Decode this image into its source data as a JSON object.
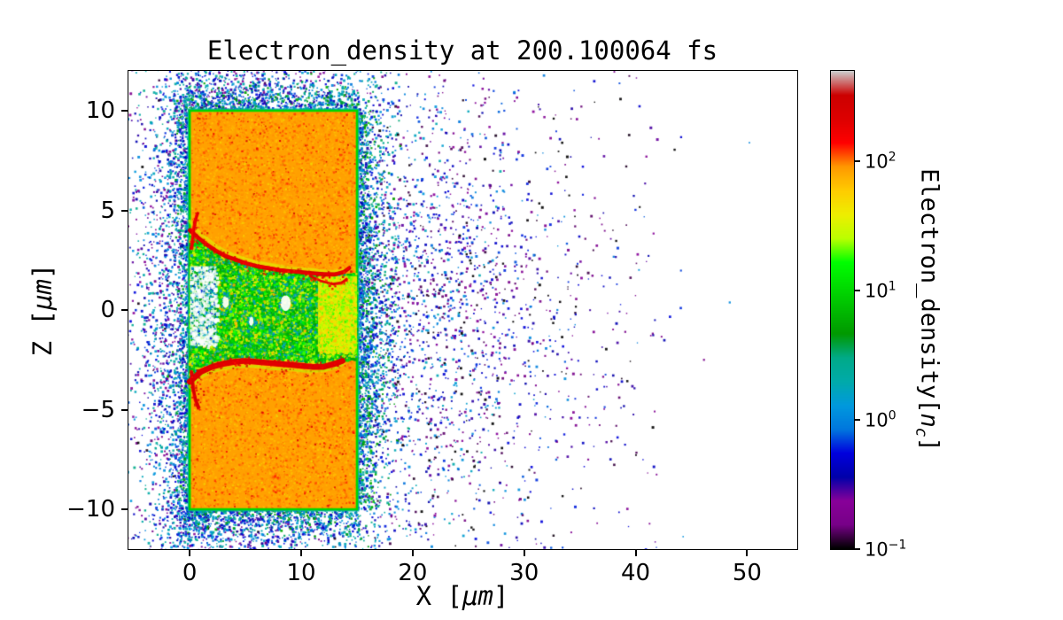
{
  "chart_data": {
    "type": "heatmap",
    "title": "Electron_density at 200.100064 fs",
    "xlabel": "X [μm]",
    "ylabel": "Z [μm]",
    "xlabel_parts": {
      "pre": "X [",
      "unit": "μm",
      "post": "]"
    },
    "ylabel_parts": {
      "pre": "Z [",
      "unit": "μm",
      "post": "]"
    },
    "x_range": [
      -5.5,
      54.5
    ],
    "z_range": [
      -12,
      12
    ],
    "x_ticks": [
      {
        "v": 0,
        "label": "0"
      },
      {
        "v": 10,
        "label": "10"
      },
      {
        "v": 20,
        "label": "20"
      },
      {
        "v": 30,
        "label": "30"
      },
      {
        "v": 40,
        "label": "40"
      },
      {
        "v": 50,
        "label": "50"
      }
    ],
    "z_ticks": [
      {
        "v": 10,
        "label": "10"
      },
      {
        "v": 5,
        "label": "5"
      },
      {
        "v": 0,
        "label": "0"
      },
      {
        "v": -5,
        "label": "−5"
      },
      {
        "v": -10,
        "label": "−10"
      }
    ],
    "colorbar": {
      "label": "Electron_density[nc]",
      "label_parts": {
        "pre": "Electron_density[",
        "var": "n",
        "sub": "c",
        "post": "]"
      },
      "scale": "log",
      "vmin": 0.1,
      "vmax": 500,
      "colormap": "nipy_spectral",
      "ticks": [
        {
          "v": 100,
          "base": "10",
          "exp": "2"
        },
        {
          "v": 10,
          "base": "10",
          "exp": "1"
        },
        {
          "v": 1,
          "base": "10",
          "exp": "0"
        },
        {
          "v": 0.1,
          "base": "10",
          "exp": "−1"
        }
      ],
      "stops": [
        [
          0.0,
          "#000000"
        ],
        [
          0.05,
          "#770088"
        ],
        [
          0.1,
          "#880099"
        ],
        [
          0.15,
          "#0000aa"
        ],
        [
          0.2,
          "#0000dd"
        ],
        [
          0.25,
          "#0077dd"
        ],
        [
          0.3,
          "#0099dd"
        ],
        [
          0.35,
          "#00aaaa"
        ],
        [
          0.4,
          "#00aa88"
        ],
        [
          0.45,
          "#009900"
        ],
        [
          0.5,
          "#00bb00"
        ],
        [
          0.55,
          "#00dd00"
        ],
        [
          0.6,
          "#00ff00"
        ],
        [
          0.65,
          "#bbff00"
        ],
        [
          0.7,
          "#eeee00"
        ],
        [
          0.75,
          "#ffcc00"
        ],
        [
          0.8,
          "#ff9900"
        ],
        [
          0.85,
          "#ff0000"
        ],
        [
          0.9,
          "#dd0000"
        ],
        [
          0.95,
          "#cc0000"
        ],
        [
          1.0,
          "#cccccc"
        ]
      ]
    },
    "render": {
      "seed": 20,
      "target": {
        "x": [
          0,
          15
        ],
        "z": [
          -10,
          10
        ],
        "density": 85,
        "speckle": {
          "n": 15000,
          "sigma_dex": 0.1
        },
        "red_specks": {
          "n": 320,
          "v": [
            140,
            300
          ]
        },
        "yellow_specks": {
          "n": 280,
          "v": [
            36,
            55
          ]
        }
      },
      "border": {
        "inner_v": 10,
        "outer_v": 2
      },
      "channel": {
        "base_v": 8,
        "upper": [
          [
            0,
            4.1
          ],
          [
            1,
            3.4
          ],
          [
            2,
            3.0
          ],
          [
            3,
            2.7
          ],
          [
            4,
            2.45
          ],
          [
            5,
            2.25
          ],
          [
            6,
            2.1
          ],
          [
            7,
            2.0
          ],
          [
            8,
            1.95
          ],
          [
            9,
            1.9
          ],
          [
            10,
            1.85
          ],
          [
            11,
            1.8
          ],
          [
            12,
            1.78
          ],
          [
            13,
            1.76
          ],
          [
            14,
            1.8
          ],
          [
            15,
            1.85
          ]
        ],
        "lower": [
          [
            0,
            -3.4
          ],
          [
            1,
            -2.9
          ],
          [
            2,
            -2.65
          ],
          [
            3,
            -2.5
          ],
          [
            4,
            -2.42
          ],
          [
            5,
            -2.4
          ],
          [
            6,
            -2.42
          ],
          [
            7,
            -2.45
          ],
          [
            8,
            -2.5
          ],
          [
            9,
            -2.55
          ],
          [
            10,
            -2.6
          ],
          [
            11,
            -2.65
          ],
          [
            12,
            -2.7
          ],
          [
            13,
            -2.65
          ],
          [
            14,
            -2.55
          ],
          [
            15,
            -2.5
          ]
        ],
        "turbulence": {
          "n": 15000,
          "v_main": [
            3.5,
            32
          ],
          "v_low": [
            1,
            4
          ],
          "v_high": [
            28,
            85
          ]
        },
        "band": {
          "x": [
            11.5,
            15
          ],
          "z": [
            -2.1,
            1.7
          ],
          "base_v": 28,
          "n": 2600,
          "v": [
            18,
            70
          ]
        },
        "mouth": {
          "x": [
            0,
            2.4
          ],
          "z": [
            -1.8,
            2.2
          ],
          "white_alpha": 0.75,
          "n": 500,
          "v": [
            0.5,
            8
          ],
          "white_n": 220
        },
        "cavities": [
          {
            "x": 8.6,
            "z": 0.35,
            "rx": 0.45,
            "ry": 0.4
          },
          {
            "x": 3.2,
            "z": 0.4,
            "rx": 0.3,
            "ry": 0.3
          },
          {
            "x": 5.5,
            "z": -0.55,
            "rx": 0.22,
            "ry": 0.25
          }
        ]
      },
      "fringes": [
        {
          "name": "upper-yellow-fringe",
          "v": [
            22,
            45
          ],
          "width": 4,
          "alpha": 0.5,
          "points": [
            [
              0,
              4.45
            ],
            [
              1,
              3.8
            ],
            [
              2,
              3.35
            ],
            [
              3,
              3.0
            ],
            [
              4,
              2.75
            ],
            [
              5,
              2.55
            ],
            [
              6,
              2.4
            ],
            [
              7,
              2.3
            ],
            [
              8,
              2.2
            ],
            [
              9,
              2.1
            ],
            [
              10,
              2.05
            ],
            [
              11,
              2.0
            ],
            [
              12,
              1.95
            ],
            [
              13,
              1.92
            ],
            [
              14,
              2.0
            ]
          ]
        },
        {
          "name": "lower-yellow-fringe",
          "v": [
            22,
            45
          ],
          "width": 4,
          "alpha": 0.5,
          "points": [
            [
              0,
              -3.85
            ],
            [
              1,
              -3.35
            ],
            [
              2,
              -3.1
            ],
            [
              3,
              -2.95
            ],
            [
              4,
              -2.85
            ],
            [
              5,
              -2.8
            ],
            [
              6,
              -2.85
            ],
            [
              7,
              -2.9
            ],
            [
              8,
              -2.95
            ],
            [
              9,
              -3.0
            ],
            [
              10,
              -3.05
            ],
            [
              11,
              -3.1
            ],
            [
              12,
              -3.05
            ],
            [
              13,
              -2.9
            ],
            [
              13.8,
              -2.7
            ]
          ]
        }
      ],
      "filaments": [
        {
          "name": "upper-filament",
          "v": [
            120,
            320
          ],
          "width": 4.5,
          "alpha": 1,
          "fuzz": 1.1,
          "points": [
            [
              0,
              4.0
            ],
            [
              0.8,
              3.6
            ],
            [
              1.6,
              3.25
            ],
            [
              2.4,
              2.95
            ],
            [
              3.2,
              2.7
            ],
            [
              4,
              2.55
            ],
            [
              5,
              2.35
            ],
            [
              6,
              2.2
            ],
            [
              7,
              2.1
            ],
            [
              8,
              2.0
            ],
            [
              9,
              1.95
            ],
            [
              10,
              1.9
            ],
            [
              11,
              1.85
            ],
            [
              12,
              1.8
            ],
            [
              13,
              1.78
            ],
            [
              13.8,
              1.9
            ],
            [
              14.3,
              2.1
            ]
          ]
        },
        {
          "name": "upper-back-strand",
          "v": [
            120,
            300
          ],
          "width": 2.5,
          "alpha": 0.9,
          "fuzz": 0.7,
          "points": [
            [
              10.8,
              1.7
            ],
            [
              11.8,
              1.45
            ],
            [
              12.8,
              1.3
            ],
            [
              13.6,
              1.35
            ],
            [
              14.1,
              1.55
            ]
          ]
        },
        {
          "name": "lower-filament",
          "v": [
            130,
            350
          ],
          "width": 6.5,
          "alpha": 1,
          "fuzz": 1.5,
          "points": [
            [
              0,
              -3.6
            ],
            [
              1,
              -3.1
            ],
            [
              2,
              -2.85
            ],
            [
              3,
              -2.7
            ],
            [
              4,
              -2.6
            ],
            [
              5,
              -2.55
            ],
            [
              6,
              -2.6
            ],
            [
              7,
              -2.65
            ],
            [
              8,
              -2.7
            ],
            [
              9,
              -2.75
            ],
            [
              10,
              -2.8
            ],
            [
              11,
              -2.85
            ],
            [
              12,
              -2.85
            ],
            [
              13,
              -2.7
            ],
            [
              13.7,
              -2.55
            ]
          ]
        },
        {
          "name": "front-upper-strand",
          "v": [
            120,
            300
          ],
          "width": 3.5,
          "alpha": 0.95,
          "fuzz": 0.9,
          "points": [
            [
              0.15,
              3.1
            ],
            [
              0.3,
              3.8
            ],
            [
              0.45,
              4.4
            ],
            [
              0.7,
              4.85
            ]
          ]
        },
        {
          "name": "front-lower-strand",
          "v": [
            130,
            320
          ],
          "width": 4,
          "alpha": 0.95,
          "fuzz": 1.1,
          "points": [
            [
              0.15,
              -3.1
            ],
            [
              0.3,
              -3.9
            ],
            [
              0.5,
              -4.5
            ],
            [
              0.8,
              -4.9
            ]
          ]
        }
      ],
      "clouds": [
        {
          "name": "front-halo",
          "type": "gauss",
          "cx": -1.2,
          "cz": 0,
          "sx": 2.2,
          "sz": 6,
          "n": 1700,
          "v": [
            0.15,
            3
          ]
        },
        {
          "name": "upper-front-spray",
          "type": "gauss",
          "cx": 0.6,
          "cz": 7,
          "sx": 1.8,
          "sz": 2.2,
          "n": 350,
          "v": [
            0.2,
            3
          ]
        },
        {
          "name": "lower-front-spray",
          "type": "gauss",
          "cx": 0.6,
          "cz": -7,
          "sx": 1.8,
          "sz": 2.5,
          "n": 450,
          "v": [
            0.2,
            3
          ]
        },
        {
          "name": "corner-top-left",
          "type": "gauss",
          "cx": 0,
          "cz": 10.6,
          "sx": 1.5,
          "sz": 1.2,
          "n": 260,
          "v": [
            0.2,
            3
          ]
        },
        {
          "name": "corner-bottom-left",
          "type": "gauss",
          "cx": 0,
          "cz": -10.6,
          "sx": 1.5,
          "sz": 1.2,
          "n": 300,
          "v": [
            0.2,
            3
          ]
        },
        {
          "name": "top-plume",
          "type": "gauss",
          "cx": 6,
          "cz": 11.3,
          "sx": 5,
          "sz": 1.3,
          "n": 650,
          "v": [
            0.15,
            2.5
          ]
        },
        {
          "name": "bottom-plume",
          "type": "gauss",
          "cx": 7,
          "cz": -11.3,
          "sx": 5.5,
          "sz": 1.3,
          "n": 700,
          "v": [
            0.15,
            2.5
          ]
        },
        {
          "name": "back-sheath",
          "type": "gauss",
          "cx": 16.2,
          "cz": 0,
          "sx": 1.3,
          "sz": 6.5,
          "n": 1500,
          "v": [
            0.3,
            5
          ]
        },
        {
          "name": "back-plume",
          "type": "gauss",
          "cx": 20,
          "cz": 0,
          "sx": 4.5,
          "sz": 6,
          "n": 1400,
          "v": [
            0.1,
            2
          ]
        },
        {
          "name": "far-field",
          "type": "gauss",
          "cx": 27,
          "cz": 0,
          "sx": 7,
          "sz": 6.5,
          "n": 750,
          "v": [
            0.08,
            1.2
          ]
        },
        {
          "name": "sparse-uniform",
          "type": "uniform",
          "x": [
            -5.5,
            42
          ],
          "z": [
            -12,
            12
          ],
          "n": 450,
          "v": [
            0.08,
            0.8
          ]
        },
        {
          "name": "left-edge-fuzz",
          "type": "edge",
          "axis": "x",
          "at": 0,
          "dir": -1,
          "sigma": 0.7,
          "along": [
            -10.5,
            10.5
          ],
          "n": 850,
          "v": [
            0.3,
            6
          ]
        },
        {
          "name": "right-edge-fuzz",
          "type": "edge",
          "axis": "x",
          "at": 15,
          "dir": 1,
          "sigma": 0.8,
          "along": [
            -10,
            10
          ],
          "n": 1000,
          "v": [
            0.3,
            8
          ]
        },
        {
          "name": "top-edge-fuzz",
          "type": "edge",
          "axis": "z",
          "at": 10,
          "dir": 1,
          "sigma": 0.7,
          "along": [
            -0.3,
            15.3
          ],
          "n": 650,
          "v": [
            0.3,
            6
          ]
        },
        {
          "name": "bottom-edge-fuzz",
          "type": "edge",
          "axis": "z",
          "at": -10,
          "dir": -1,
          "sigma": 0.7,
          "along": [
            -0.3,
            15.3
          ],
          "n": 650,
          "v": [
            0.3,
            6
          ]
        }
      ]
    }
  }
}
